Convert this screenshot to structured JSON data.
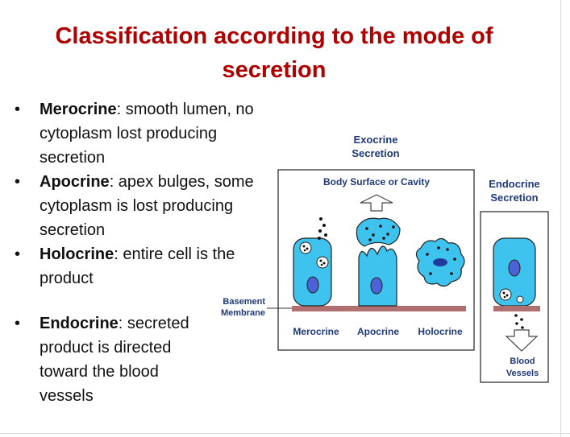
{
  "title": "Classification according to the mode of secretion",
  "bullets": [
    {
      "term": "Merocrine",
      "text": ": smooth lumen, no cytoplasm lost  producing secretion"
    },
    {
      "term": "Apocrine",
      "text": ": apex bulges, some cytoplasm is lost producing secretion"
    },
    {
      "term": "Holocrine",
      "text": ": entire cell is the product"
    },
    {
      "term": "Endocrine",
      "text": ": secreted product  is directed toward the blood vessels"
    }
  ],
  "diagram": {
    "exocrine_label_1": "Exocrine",
    "exocrine_label_2": "Secretion",
    "body_surface": "Body Surface or Cavity",
    "basement_1": "Basement",
    "basement_2": "Membrane",
    "merocrine": "Merocrine",
    "apocrine": "Apocrine",
    "holocrine": "Holocrine",
    "endocrine_label_1": "Endocrine",
    "endocrine_label_2": "Secretion",
    "blood_1": "Blood",
    "blood_2": "Vessels",
    "colors": {
      "title": "#b00000",
      "cell_fill": "#3ec3ee",
      "nucleus": "#4b63d6",
      "membrane": "#b07070",
      "label": "#1f3a78"
    }
  }
}
